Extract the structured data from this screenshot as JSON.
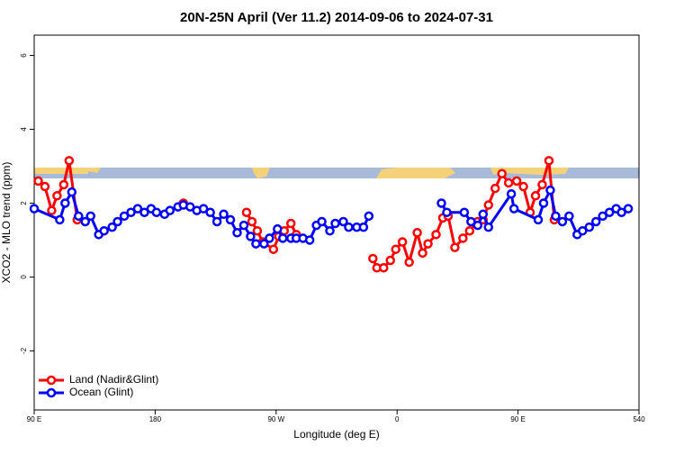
{
  "chart_data": {
    "type": "line",
    "title": "20N-25N April (Ver 11.2)   2014-09-06 to 2024-07-31",
    "x_label": "Longitude (deg E)",
    "y_label": "XCO2 - MLO trend (ppm)",
    "xlim": [
      90,
      540
    ],
    "ylim": [
      -3.6,
      6.55
    ],
    "xticks": [
      {
        "value": 90,
        "label": "90 E"
      },
      180,
      {
        "value": 270,
        "label": "90 W"
      },
      {
        "value": 360,
        "label": "0"
      },
      {
        "value": 450,
        "label": "90 E"
      },
      540
    ],
    "yticks": [
      6,
      4,
      2,
      0,
      -2
    ],
    "legend": "bottom-left",
    "series": [
      {
        "name": "Land (Nadir&Glint)",
        "color": "#ff0000",
        "x": [
          93,
          98,
          103,
          107,
          112,
          116,
          122,
          160,
          201,
          225,
          248,
          252,
          256,
          260,
          268,
          272,
          276,
          281,
          285,
          315,
          342,
          345,
          350,
          355,
          359,
          364,
          369,
          375,
          379,
          383,
          389,
          394,
          398,
          403,
          409,
          414,
          420,
          424,
          428,
          433,
          438,
          443,
          449,
          454,
          459,
          463,
          468,
          473,
          477
        ],
        "values": [
          2.6,
          2.45,
          1.8,
          2.2,
          2.5,
          3.15,
          1.55,
          null,
          2.0,
          null,
          1.75,
          1.5,
          1.25,
          0.95,
          0.75,
          1.1,
          1.25,
          1.45,
          1.15,
          null,
          0.5,
          0.25,
          0.25,
          0.45,
          0.75,
          0.95,
          0.4,
          1.2,
          0.65,
          0.9,
          1.15,
          1.6,
          1.65,
          0.8,
          1.05,
          1.25,
          1.5,
          1.55,
          1.95,
          2.4,
          2.8,
          2.55,
          2.6,
          2.45,
          1.75,
          2.2,
          2.5,
          3.15,
          1.55
        ]
      },
      {
        "name": "Ocean (Glint)",
        "color": "#0000ff",
        "x": [
          90,
          109,
          113,
          118,
          123,
          128,
          132,
          138,
          142,
          148,
          152,
          157,
          162,
          167,
          172,
          177,
          181,
          187,
          191,
          197,
          201,
          206,
          211,
          216,
          221,
          226,
          231,
          236,
          241,
          246,
          251,
          255,
          261,
          265,
          271,
          275,
          281,
          285,
          290,
          295,
          300,
          304,
          310,
          314,
          320,
          324,
          330,
          335,
          339,
          366,
          393,
          397,
          410,
          415,
          420,
          424,
          428,
          445,
          447,
          465,
          469,
          474,
          478,
          483,
          488,
          494,
          498,
          503,
          508,
          513,
          518,
          523,
          527,
          532
        ],
        "values": [
          1.85,
          1.55,
          2.0,
          2.3,
          1.65,
          1.5,
          1.65,
          1.15,
          1.25,
          1.35,
          1.5,
          1.65,
          1.75,
          1.85,
          1.75,
          1.85,
          1.75,
          1.7,
          1.8,
          1.9,
          1.95,
          1.9,
          1.8,
          1.85,
          1.75,
          1.5,
          1.7,
          1.55,
          1.2,
          1.4,
          1.1,
          0.9,
          0.9,
          1.05,
          1.3,
          1.05,
          1.05,
          1.05,
          1.05,
          1.0,
          1.4,
          1.5,
          1.25,
          1.45,
          1.5,
          1.35,
          1.35,
          1.35,
          1.65,
          null,
          2.0,
          1.75,
          1.75,
          1.5,
          1.4,
          1.7,
          1.35,
          2.25,
          1.85,
          1.55,
          2.0,
          2.35,
          1.65,
          1.5,
          1.65,
          1.15,
          1.25,
          1.35,
          1.5,
          1.65,
          1.75,
          1.85,
          1.75,
          1.85
        ]
      }
    ]
  }
}
